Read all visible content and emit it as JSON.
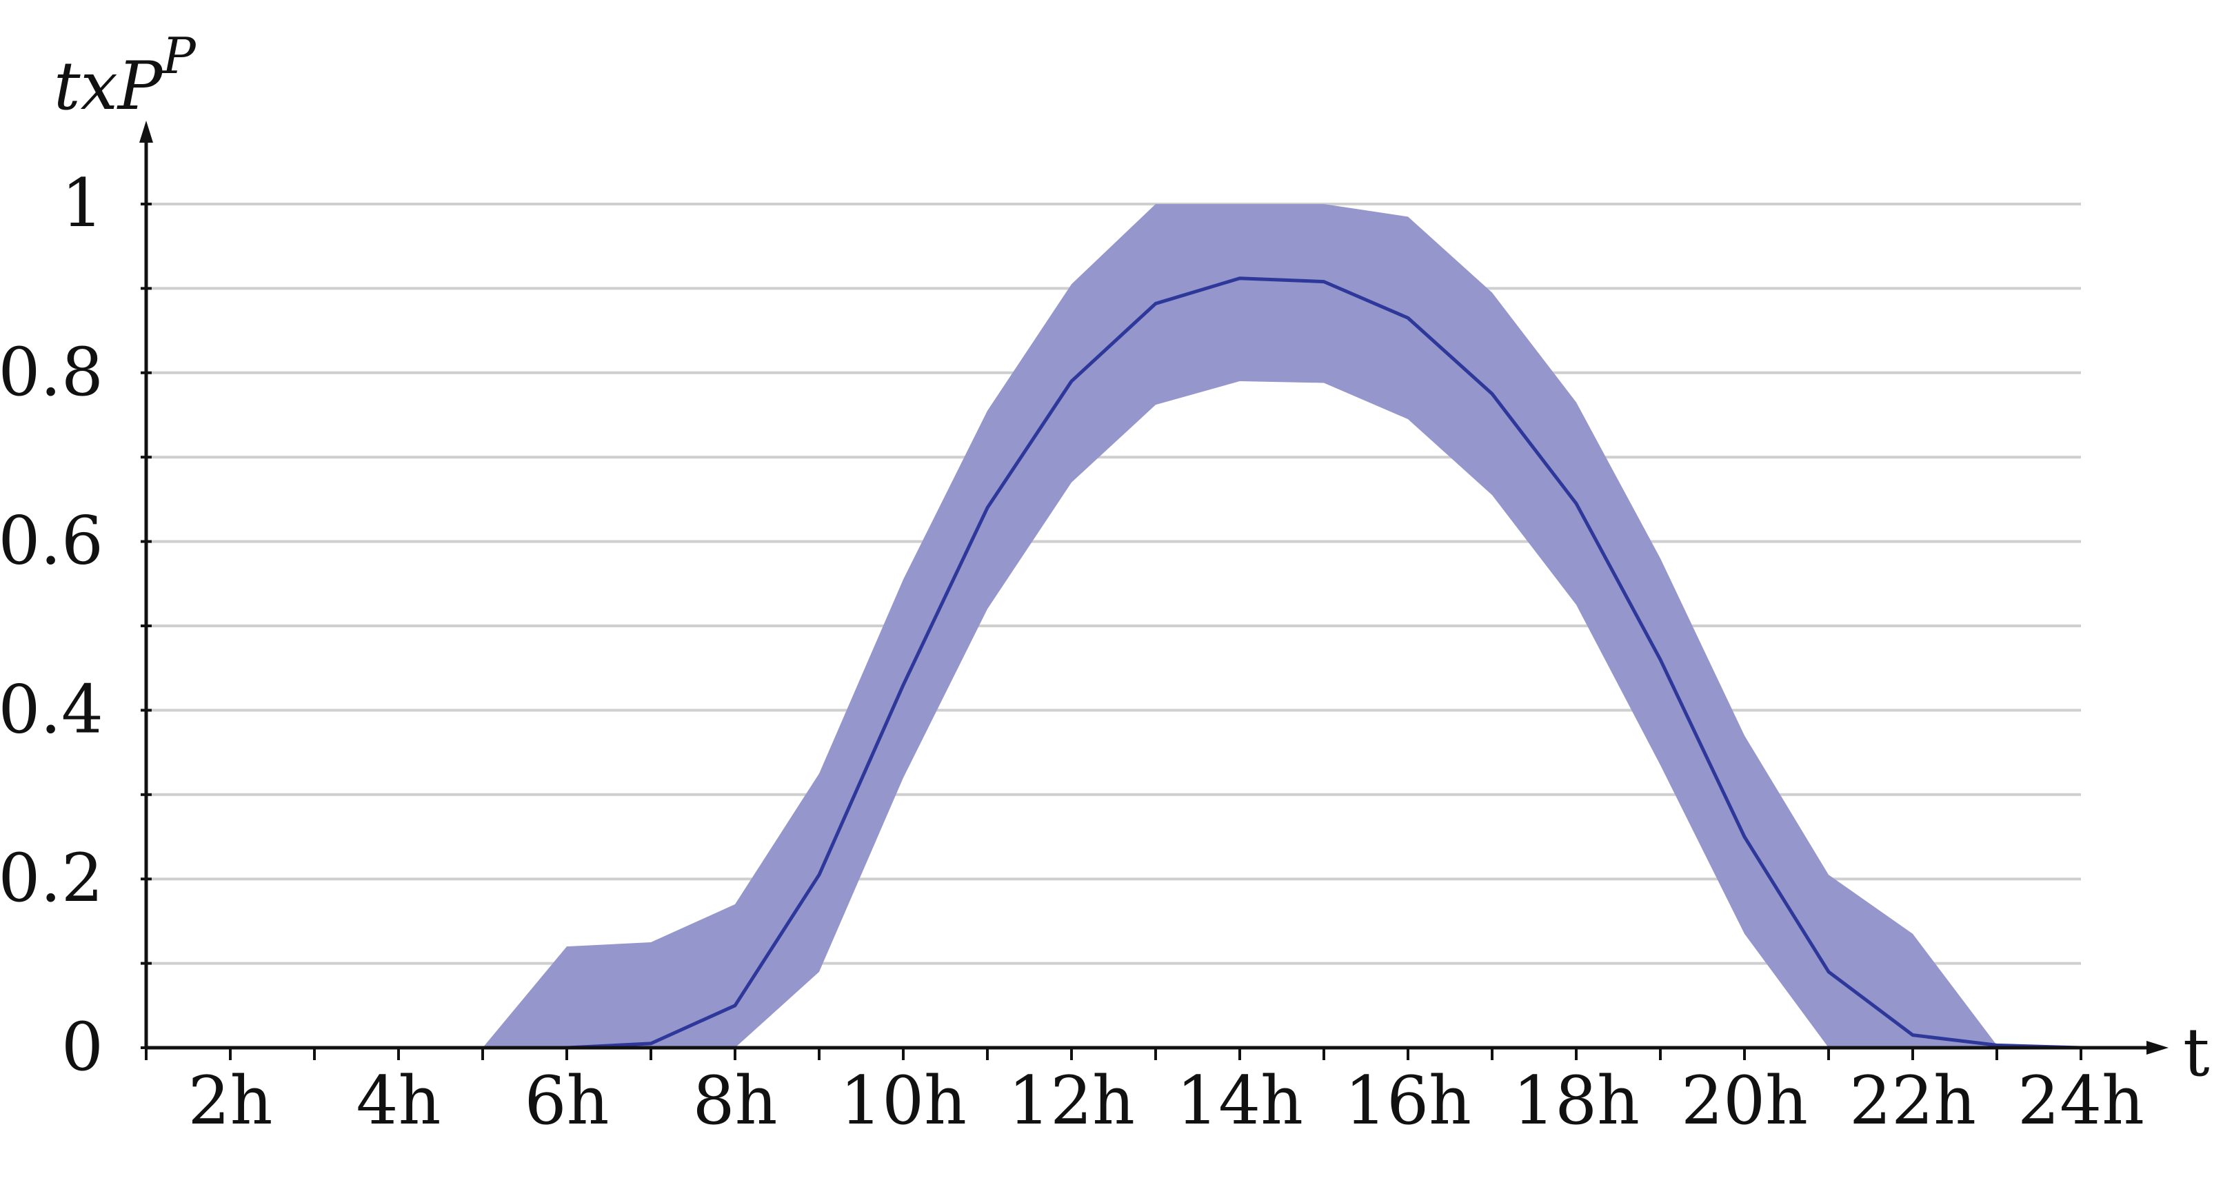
{
  "chart_data": {
    "type": "area",
    "ylabel": "txP",
    "ylabel_sup": "P",
    "xlabel": "t",
    "x": [
      1,
      2,
      3,
      4,
      5,
      6,
      7,
      8,
      9,
      10,
      11,
      12,
      13,
      14,
      15,
      16,
      17,
      18,
      19,
      20,
      21,
      22,
      23,
      24
    ],
    "xticks": [
      {
        "value": 2,
        "label": "2h"
      },
      {
        "value": 4,
        "label": "4h"
      },
      {
        "value": 6,
        "label": "6h"
      },
      {
        "value": 8,
        "label": "8h"
      },
      {
        "value": 10,
        "label": "10h"
      },
      {
        "value": 12,
        "label": "12h"
      },
      {
        "value": 14,
        "label": "14h"
      },
      {
        "value": 16,
        "label": "16h"
      },
      {
        "value": 18,
        "label": "18h"
      },
      {
        "value": 20,
        "label": "20h"
      },
      {
        "value": 22,
        "label": "22h"
      },
      {
        "value": 24,
        "label": "24h"
      }
    ],
    "yticks": [
      {
        "value": 0,
        "label": "0"
      },
      {
        "value": 0.2,
        "label": "0.2"
      },
      {
        "value": 0.4,
        "label": "0.4"
      },
      {
        "value": 0.6,
        "label": "0.6"
      },
      {
        "value": 0.8,
        "label": "0.8"
      },
      {
        "value": 1,
        "label": "1"
      }
    ],
    "xlim": [
      1,
      25
    ],
    "ylim": [
      0,
      1.1
    ],
    "grid_step": 0.1,
    "grid": true,
    "series": [
      {
        "role": "mean",
        "values": [
          0,
          0,
          0,
          0,
          0,
          0,
          0.005,
          0.05,
          0.205,
          0.43,
          0.64,
          0.79,
          0.882,
          0.912,
          0.908,
          0.865,
          0.775,
          0.645,
          0.46,
          0.25,
          0.09,
          0.015,
          0.003,
          0
        ]
      },
      {
        "role": "band-upper",
        "values": [
          0,
          0,
          0,
          0,
          0,
          0.12,
          0.125,
          0.17,
          0.325,
          0.555,
          0.755,
          0.905,
          1.0,
          1.0,
          1.0,
          0.985,
          0.895,
          0.765,
          0.58,
          0.37,
          0.205,
          0.135,
          0.003,
          0
        ]
      },
      {
        "role": "band-lower",
        "values": [
          0,
          0,
          0,
          0,
          0,
          0,
          0,
          0,
          0.09,
          0.32,
          0.52,
          0.67,
          0.762,
          0.79,
          0.788,
          0.745,
          0.655,
          0.525,
          0.335,
          0.135,
          0,
          0,
          0,
          0
        ]
      }
    ],
    "colors": {
      "band": "#9596cc",
      "line": "#2e389a",
      "grid": "#cfcfcf",
      "axis": "#111111"
    }
  }
}
